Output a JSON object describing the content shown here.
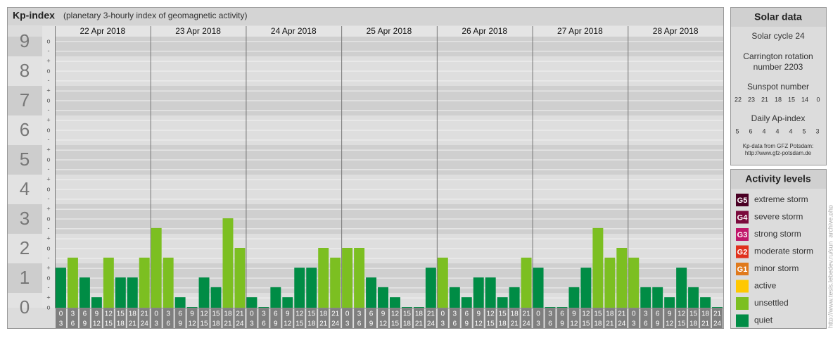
{
  "title": "Kp-index",
  "subtitle": "(planetary 3-hourly index of geomagnetic activity)",
  "chart_data": {
    "type": "bar",
    "days": [
      "22 Apr 2018",
      "23 Apr 2018",
      "24 Apr 2018",
      "25 Apr 2018",
      "26 Apr 2018",
      "27 Apr 2018",
      "28 Apr 2018"
    ],
    "hours": [
      [
        0,
        3
      ],
      [
        3,
        6
      ],
      [
        6,
        9
      ],
      [
        9,
        12
      ],
      [
        12,
        15
      ],
      [
        15,
        18
      ],
      [
        18,
        21
      ],
      [
        21,
        24
      ]
    ],
    "values": [
      1.33,
      1.67,
      1,
      0.33,
      1.67,
      1,
      1,
      1.67,
      2.67,
      1.67,
      0.33,
      0,
      1,
      0.67,
      3,
      2,
      0.33,
      0,
      0.67,
      0.33,
      1.33,
      1.33,
      2,
      1.67,
      2,
      2,
      1,
      0.67,
      0.33,
      0,
      0,
      1.33,
      1.67,
      0.67,
      0.33,
      1,
      1,
      0.33,
      0.67,
      1.67,
      1.33,
      0,
      0,
      0.67,
      1.33,
      2.67,
      1.67,
      2,
      1.67,
      0.67,
      0.67,
      0.33,
      1.33,
      0.67,
      0.33,
      0
    ],
    "colors": [
      "#008c45",
      "#7cbf21",
      "#008c45",
      "#008c45",
      "#7cbf21",
      "#008c45",
      "#008c45",
      "#7cbf21",
      "#7cbf21",
      "#7cbf21",
      "#008c45",
      "#008c45",
      "#008c45",
      "#008c45",
      "#7cbf21",
      "#7cbf21",
      "#008c45",
      "#008c45",
      "#008c45",
      "#008c45",
      "#008c45",
      "#008c45",
      "#7cbf21",
      "#7cbf21",
      "#7cbf21",
      "#7cbf21",
      "#008c45",
      "#008c45",
      "#008c45",
      "#008c45",
      "#008c45",
      "#008c45",
      "#7cbf21",
      "#008c45",
      "#008c45",
      "#008c45",
      "#008c45",
      "#008c45",
      "#008c45",
      "#7cbf21",
      "#008c45",
      "#008c45",
      "#008c45",
      "#008c45",
      "#008c45",
      "#7cbf21",
      "#7cbf21",
      "#7cbf21",
      "#7cbf21",
      "#008c45",
      "#008c45",
      "#008c45",
      "#008c45",
      "#008c45",
      "#008c45",
      "#008c45"
    ],
    "ylim": [
      0,
      9
    ],
    "yticks": [
      0,
      1,
      2,
      3,
      4,
      5,
      6,
      7,
      8,
      9
    ],
    "minor_ticks": [
      {
        "value": 0,
        "label": "o"
      },
      {
        "value": 0.33,
        "label": "+"
      },
      {
        "value": 0.67,
        "label": "-"
      },
      {
        "value": 1,
        "label": "o"
      },
      {
        "value": 1.33,
        "label": "+"
      },
      {
        "value": 1.67,
        "label": "-"
      },
      {
        "value": 2,
        "label": "o"
      },
      {
        "value": 2.33,
        "label": "+"
      },
      {
        "value": 2.67,
        "label": "-"
      },
      {
        "value": 3,
        "label": "o"
      },
      {
        "value": 3.33,
        "label": "+"
      },
      {
        "value": 3.67,
        "label": "-"
      },
      {
        "value": 4,
        "label": "o"
      },
      {
        "value": 4.33,
        "label": "+"
      },
      {
        "value": 4.67,
        "label": "-"
      },
      {
        "value": 5,
        "label": "o"
      },
      {
        "value": 5.33,
        "label": "+"
      },
      {
        "value": 5.67,
        "label": "-"
      },
      {
        "value": 6,
        "label": "o"
      },
      {
        "value": 6.33,
        "label": "+"
      },
      {
        "value": 6.67,
        "label": "-"
      },
      {
        "value": 7,
        "label": "o"
      },
      {
        "value": 7.33,
        "label": "+"
      },
      {
        "value": 7.67,
        "label": "-"
      },
      {
        "value": 8,
        "label": "o"
      },
      {
        "value": 8.33,
        "label": "+"
      },
      {
        "value": 8.67,
        "label": "-"
      },
      {
        "value": 9,
        "label": "o"
      }
    ],
    "grid": true
  },
  "solar_data": {
    "title": "Solar data",
    "cycle": "Solar cycle 24",
    "carrington": [
      "Carrington rotation",
      "number 2203"
    ],
    "sunspot_label": "Sunspot number",
    "sunspot": [
      22,
      23,
      21,
      18,
      15,
      14,
      0
    ],
    "ap_label": "Daily Ap-index",
    "ap": [
      5,
      6,
      4,
      4,
      4,
      5,
      3
    ],
    "source": [
      "Kp-data from GFZ Potsdam:",
      "http://www.gfz-potsdam.de"
    ]
  },
  "activity_levels": {
    "title": "Activity levels",
    "items": [
      {
        "code": "G5",
        "label": "extreme storm",
        "color": "#4a0024"
      },
      {
        "code": "G4",
        "label": "severe storm",
        "color": "#7a0a3c"
      },
      {
        "code": "G3",
        "label": "strong storm",
        "color": "#c0166a"
      },
      {
        "code": "G2",
        "label": "moderate storm",
        "color": "#e0301c"
      },
      {
        "code": "G1",
        "label": "minor storm",
        "color": "#e07a1c"
      },
      {
        "code": null,
        "label": "active",
        "color": "#ffc800"
      },
      {
        "code": null,
        "label": "unsettled",
        "color": "#7cbf21"
      },
      {
        "code": null,
        "label": "quiet",
        "color": "#008c45"
      }
    ]
  },
  "watermark": "http://www.tesis.lebedev.ru/sun_archive.php"
}
